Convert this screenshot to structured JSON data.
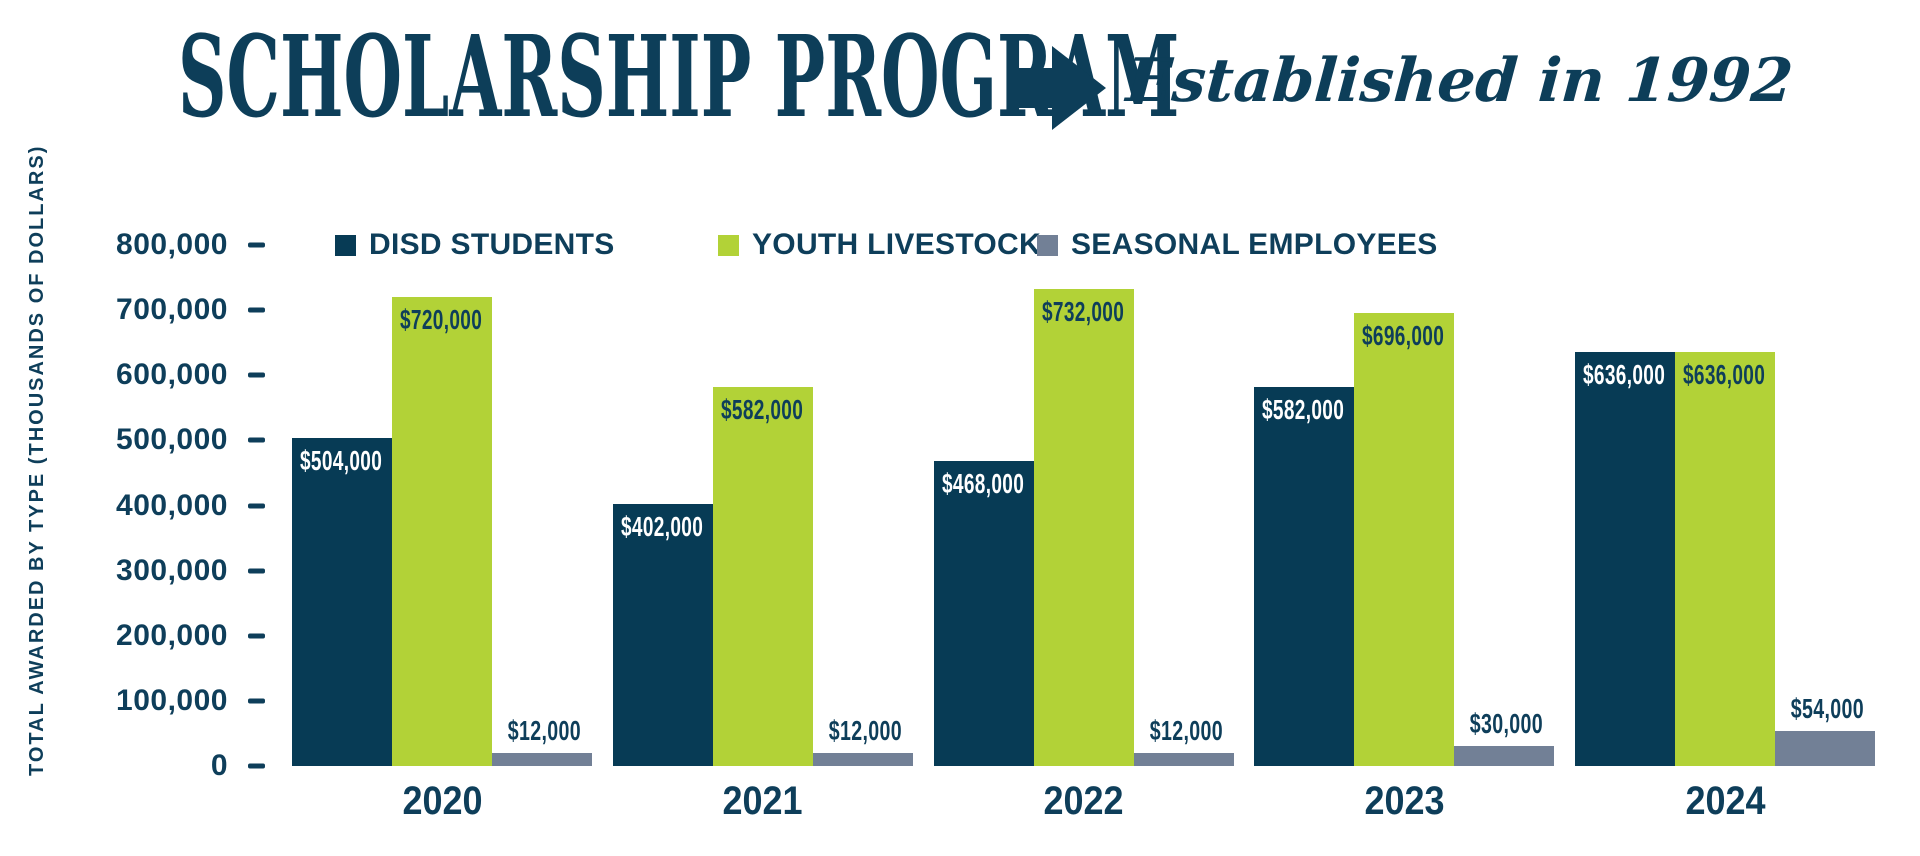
{
  "header": {
    "title": "SCHOLARSHIP PROGRAM",
    "established": "Established in 1992",
    "arrow_icon": "right-arrow"
  },
  "colors": {
    "navy": "#073b55",
    "green": "#b2d237",
    "gray": "#728096",
    "text_navy": "#0e3e5a",
    "label_on_navy": "#ffffff"
  },
  "chart_data": {
    "type": "bar",
    "title": "SCHOLARSHIP PROGRAM",
    "subtitle": "Established in 1992",
    "xlabel": "",
    "ylabel": "TOTAL AWARDED BY TYPE (THOUSANDS OF DOLLARS)",
    "ylim": [
      0,
      800000
    ],
    "ytick_interval": 100000,
    "yticks": [
      "800,000",
      "700,000",
      "600,000",
      "500,000",
      "400,000",
      "300,000",
      "200,000",
      "100,000",
      "0"
    ],
    "grid": false,
    "legend_position": "top",
    "categories": [
      "2020",
      "2021",
      "2022",
      "2023",
      "2024"
    ],
    "series": [
      {
        "name": "DISD STUDENTS",
        "color_key": "navy",
        "values": [
          504000,
          402000,
          468000,
          582000,
          636000
        ],
        "labels": [
          "$504,000",
          "$402,000",
          "$468,000",
          "$582,000",
          "$636,000"
        ],
        "label_placement": "inside"
      },
      {
        "name": "YOUTH LIVESTOCK",
        "color_key": "green",
        "values": [
          720000,
          582000,
          732000,
          696000,
          636000
        ],
        "labels": [
          "$720,000",
          "$582,000",
          "$732,000",
          "$696,000",
          "$636,000"
        ],
        "label_placement": "inside"
      },
      {
        "name": "SEASONAL EMPLOYEES",
        "color_key": "gray",
        "values": [
          12000,
          12000,
          12000,
          30000,
          54000
        ],
        "labels": [
          "$12,000",
          "$12,000",
          "$12,000",
          "$30,000",
          "$54,000"
        ],
        "label_placement": "above"
      }
    ]
  }
}
